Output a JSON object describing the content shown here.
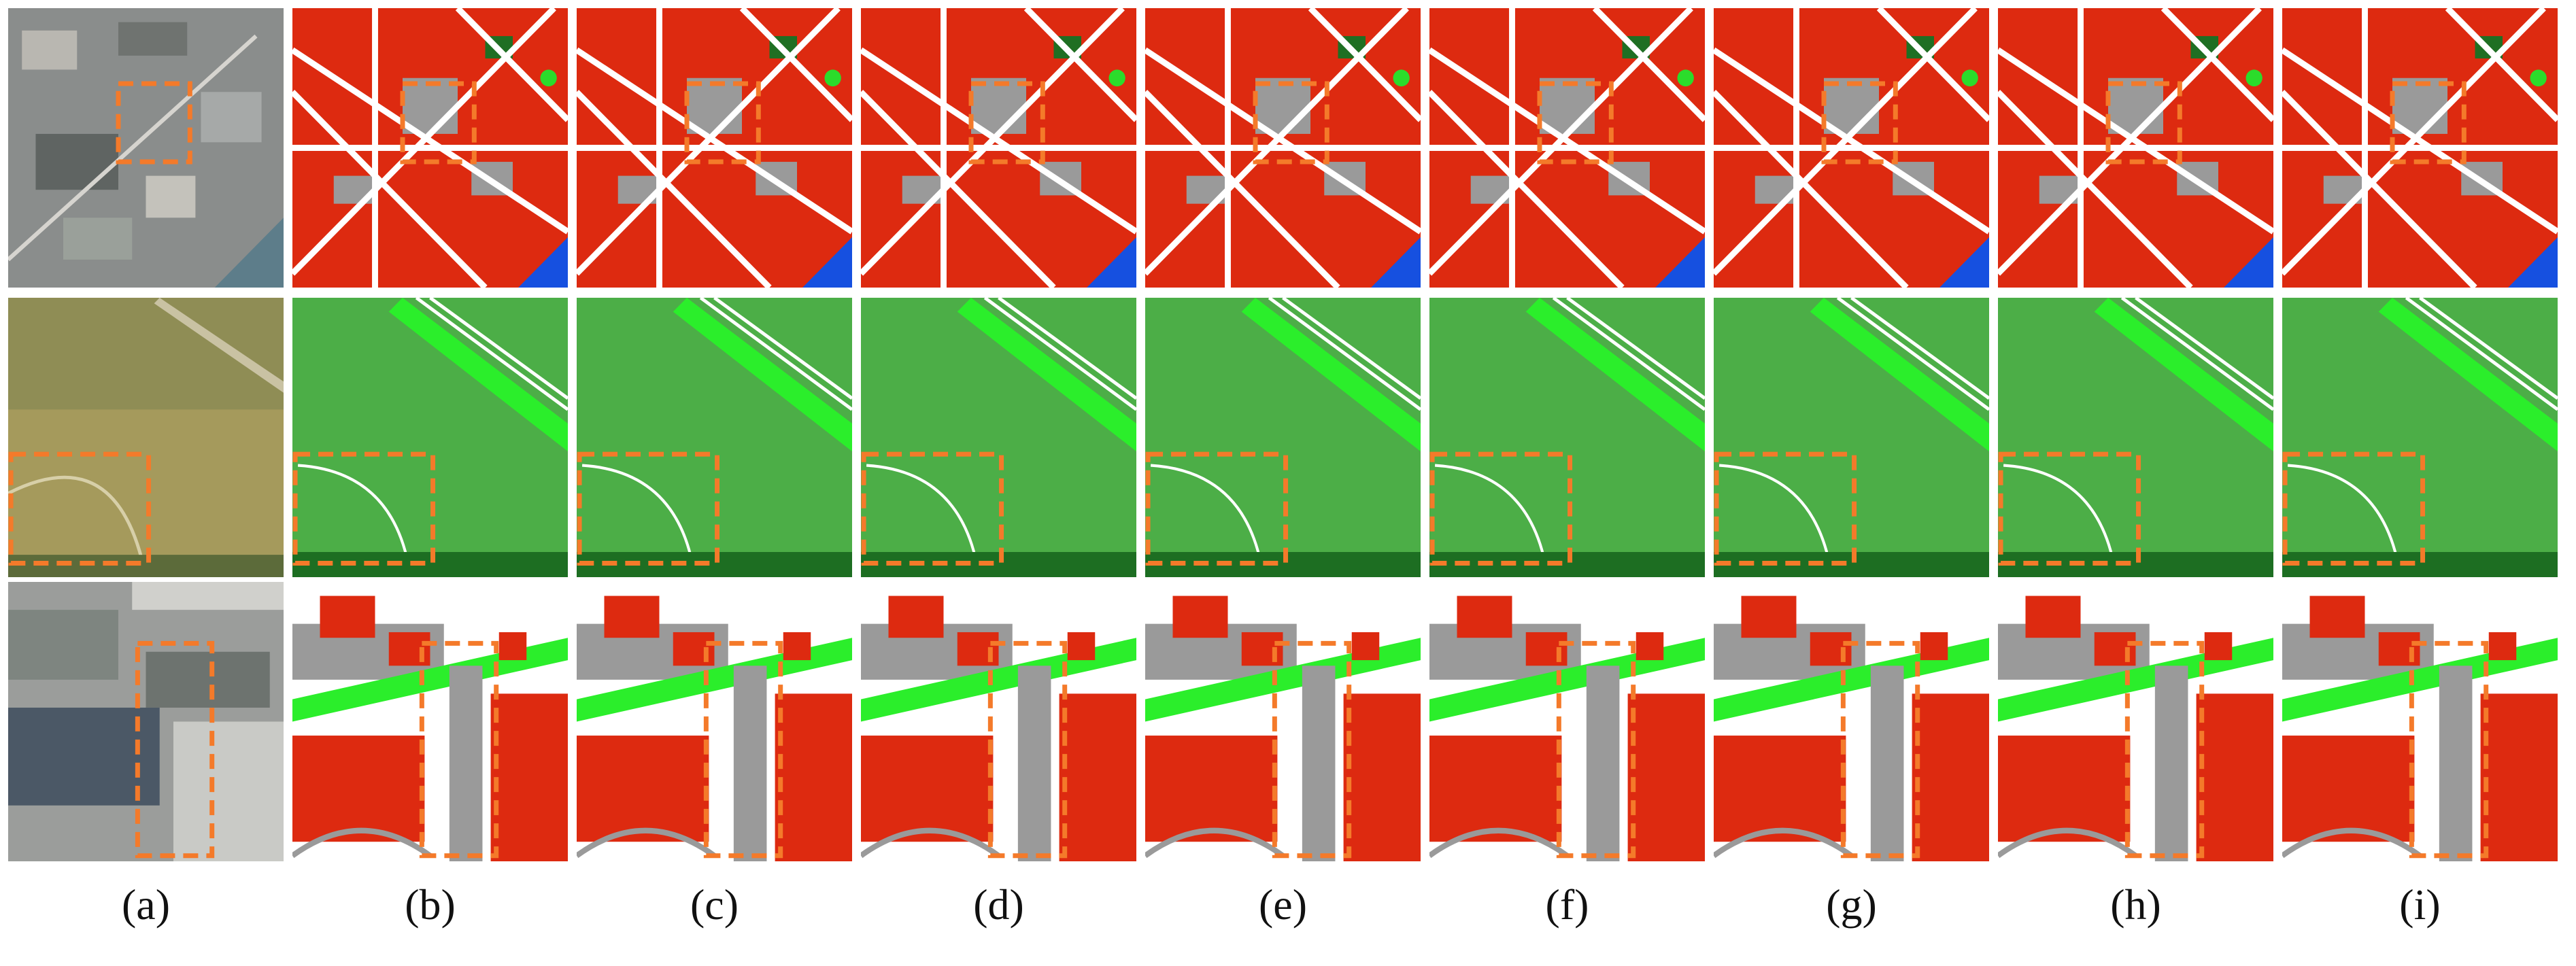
{
  "figure": {
    "panel_labels": [
      "(a)",
      "(b)",
      "(c)",
      "(d)",
      "(e)",
      "(f)",
      "(g)",
      "(h)",
      "(i)"
    ]
  }
}
